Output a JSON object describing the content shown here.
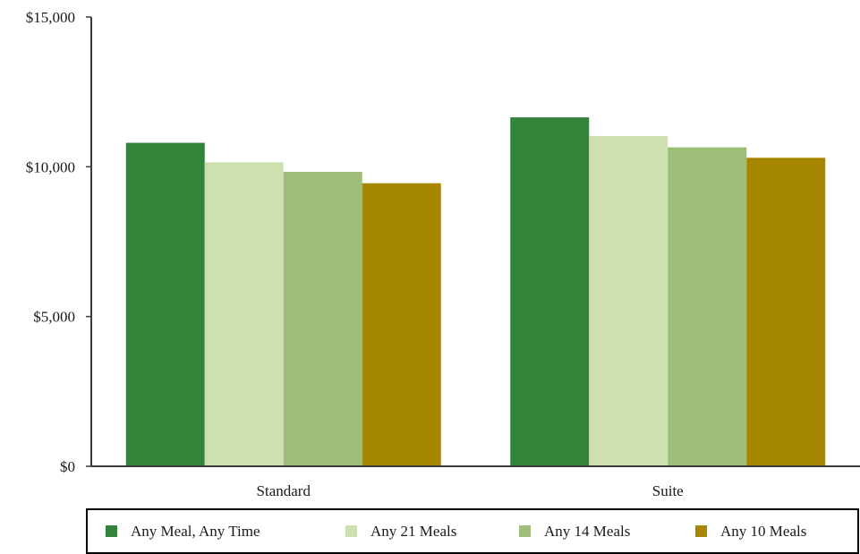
{
  "chart_data": {
    "type": "bar",
    "categories": [
      "Standard",
      "Suite"
    ],
    "series": [
      {
        "name": "Any Meal,  Any Time",
        "values": [
          10800,
          11650
        ],
        "color": "#31843a"
      },
      {
        "name": "Any 21 Meals",
        "values": [
          10150,
          11025
        ],
        "color": "#cfe0b0"
      },
      {
        "name": "Any 14 Meals",
        "values": [
          9830,
          10650
        ],
        "color": "#9ebd78"
      },
      {
        "name": "Any 10 Meals",
        "values": [
          9450,
          10300
        ],
        "color": "#a78600"
      }
    ],
    "title": "",
    "xlabel": "",
    "ylabel": "",
    "ylim": [
      0,
      15000
    ],
    "yticks": [
      0,
      5000,
      10000,
      15000
    ],
    "ytick_labels": [
      "$0",
      "$5,000",
      "$10,000",
      "$15,000"
    ],
    "grid": false,
    "legend": "bottom"
  }
}
